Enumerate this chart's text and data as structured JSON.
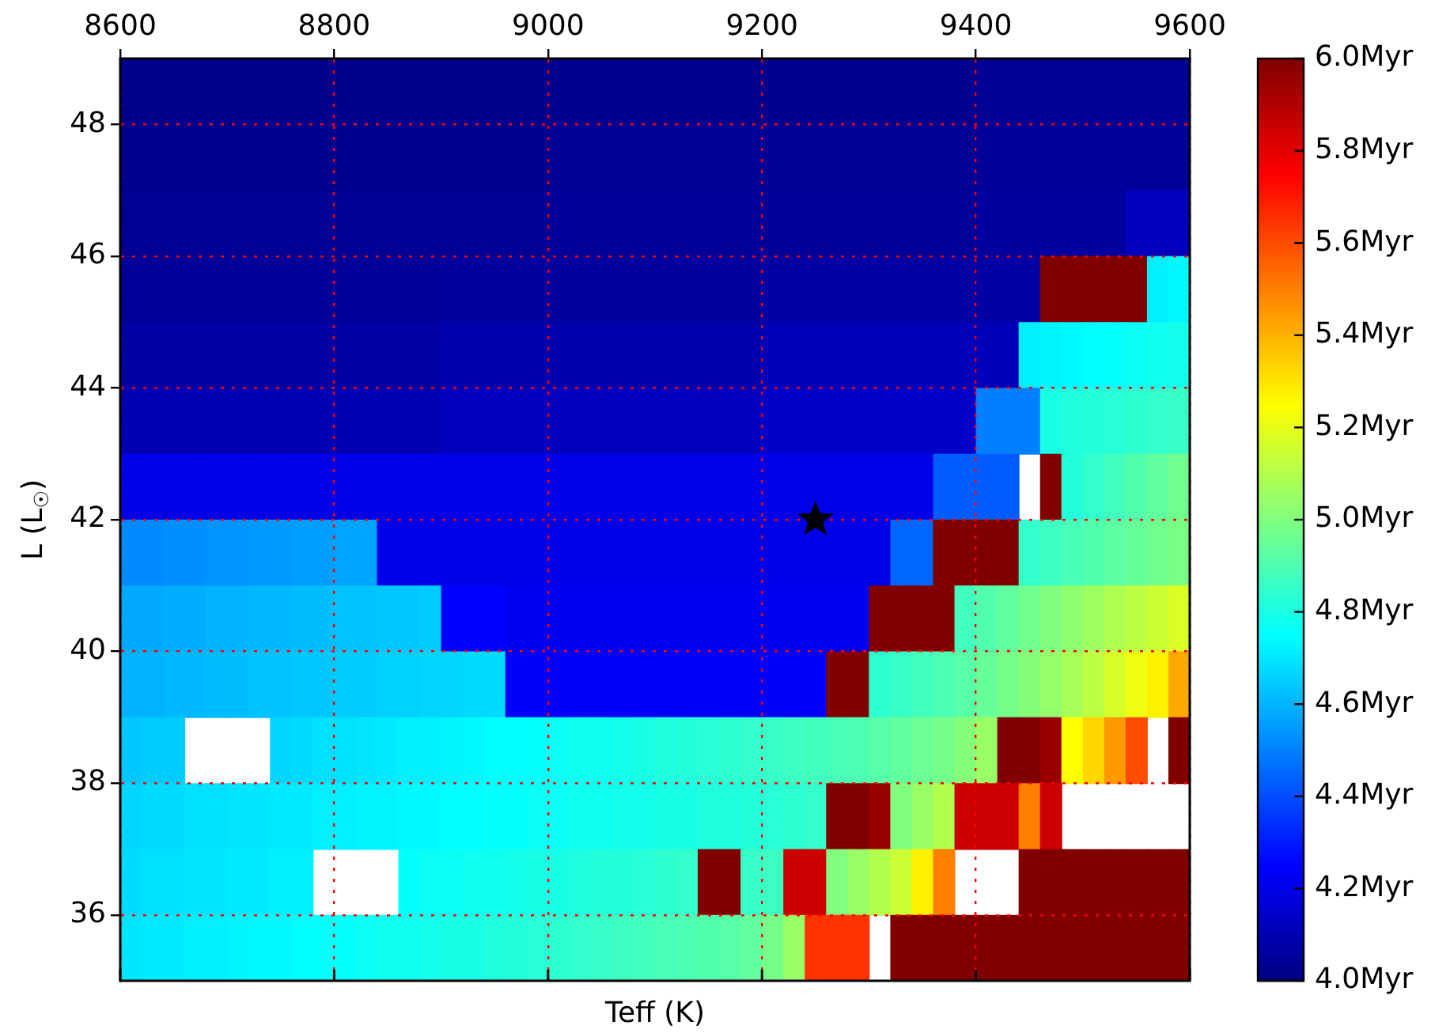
{
  "chart_data": {
    "type": "heatmap",
    "xlabel": "Teff (K)",
    "ylabel": "L (L$_{☉}$)",
    "x": [
      8610,
      8630,
      8650,
      8670,
      8690,
      8710,
      8730,
      8750,
      8770,
      8790,
      8810,
      8830,
      8850,
      8870,
      8890,
      8910,
      8930,
      8950,
      8970,
      8990,
      9010,
      9030,
      9050,
      9070,
      9090,
      9110,
      9130,
      9150,
      9170,
      9190,
      9210,
      9230,
      9250,
      9270,
      9290,
      9310,
      9330,
      9350,
      9370,
      9390,
      9410,
      9430,
      9450,
      9470,
      9490,
      9510,
      9530,
      9550,
      9570,
      9590
    ],
    "y": [
      48.5,
      47.5,
      46.5,
      45.5,
      44.5,
      43.5,
      42.5,
      41.5,
      40.5,
      39.5,
      38.5,
      37.5,
      36.5,
      35.5
    ],
    "xlim": [
      8600,
      9600
    ],
    "xticks": [
      8600,
      8800,
      9000,
      9200,
      9400,
      9600
    ],
    "ylim": [
      35,
      49
    ],
    "yticks": [
      36,
      38,
      40,
      42,
      44,
      46,
      48
    ],
    "clim": [
      4.0,
      6.0
    ],
    "cticks": [
      {
        "value": 4.0,
        "label": "4.0Myr"
      },
      {
        "value": 4.2,
        "label": "4.2Myr"
      },
      {
        "value": 4.4,
        "label": "4.4Myr"
      },
      {
        "value": 4.6,
        "label": "4.6Myr"
      },
      {
        "value": 4.8,
        "label": "4.8Myr"
      },
      {
        "value": 5.0,
        "label": "5.0Myr"
      },
      {
        "value": 5.2,
        "label": "5.2Myr"
      },
      {
        "value": 5.4,
        "label": "5.4Myr"
      },
      {
        "value": 5.6,
        "label": "5.6Myr"
      },
      {
        "value": 5.8,
        "label": "5.8Myr"
      },
      {
        "value": 6.0,
        "label": "6.0Myr"
      }
    ],
    "grid": true,
    "marker": "star",
    "cells": [
      [
        4.02,
        4.02,
        4.02,
        4.02,
        4.02,
        4.02,
        4.02,
        4.02,
        4.02,
        4.02,
        4.02,
        4.02,
        4.02,
        4.02,
        4.02,
        4.02,
        4.02,
        4.02,
        4.02,
        4.02,
        4.03,
        4.03,
        4.03,
        4.03,
        4.03,
        4.03,
        4.03,
        4.03,
        4.03,
        4.03,
        4.03,
        4.03,
        4.03,
        4.03,
        4.03,
        4.03,
        4.03,
        4.03,
        4.03,
        4.03,
        4.04,
        4.04,
        4.04,
        4.04,
        4.04,
        4.04,
        4.04,
        4.04,
        4.04,
        4.04
      ],
      [
        4.03,
        4.03,
        4.03,
        4.03,
        4.03,
        4.03,
        4.03,
        4.03,
        4.03,
        4.03,
        4.03,
        4.03,
        4.03,
        4.03,
        4.03,
        4.03,
        4.03,
        4.03,
        4.03,
        4.03,
        4.04,
        4.04,
        4.04,
        4.04,
        4.04,
        4.04,
        4.04,
        4.04,
        4.04,
        4.04,
        4.04,
        4.04,
        4.04,
        4.04,
        4.04,
        4.04,
        4.04,
        4.04,
        4.04,
        4.04,
        4.05,
        4.05,
        4.05,
        4.05,
        4.05,
        4.05,
        4.05,
        4.05,
        4.05,
        4.05
      ],
      [
        4.04,
        4.04,
        4.04,
        4.04,
        4.04,
        4.04,
        4.04,
        4.04,
        4.04,
        4.04,
        4.04,
        4.04,
        4.04,
        4.04,
        4.04,
        4.04,
        4.04,
        4.04,
        4.04,
        4.04,
        4.05,
        4.05,
        4.05,
        4.05,
        4.05,
        4.05,
        4.05,
        4.05,
        4.05,
        4.05,
        4.05,
        4.05,
        4.05,
        4.05,
        4.05,
        4.05,
        4.05,
        4.05,
        4.05,
        4.05,
        4.06,
        4.06,
        4.06,
        4.06,
        4.06,
        4.06,
        4.06,
        4.12,
        4.12,
        4.12
      ],
      [
        4.05,
        4.05,
        4.05,
        4.05,
        4.05,
        4.05,
        4.05,
        4.05,
        4.05,
        4.05,
        4.05,
        4.05,
        4.05,
        4.05,
        4.05,
        4.06,
        4.06,
        4.06,
        4.06,
        4.06,
        4.06,
        4.06,
        4.06,
        4.06,
        4.06,
        4.06,
        4.06,
        4.06,
        4.06,
        4.06,
        4.07,
        4.07,
        4.07,
        4.07,
        4.07,
        4.07,
        4.07,
        4.07,
        4.07,
        4.07,
        4.07,
        4.07,
        4.07,
        6.0,
        6.0,
        6.0,
        6.0,
        6.0,
        4.72,
        4.74
      ],
      [
        4.07,
        4.07,
        4.07,
        4.07,
        4.07,
        4.07,
        4.07,
        4.07,
        4.07,
        4.07,
        4.07,
        4.07,
        4.07,
        4.07,
        4.07,
        4.09,
        4.09,
        4.09,
        4.09,
        4.09,
        4.09,
        4.09,
        4.09,
        4.09,
        4.09,
        4.09,
        4.09,
        4.09,
        4.09,
        4.09,
        4.11,
        4.11,
        4.11,
        4.11,
        4.11,
        4.11,
        4.11,
        4.11,
        4.11,
        4.11,
        4.11,
        4.11,
        4.72,
        4.73,
        4.74,
        4.75,
        4.76,
        4.77,
        4.78,
        4.79
      ],
      [
        4.1,
        4.1,
        4.1,
        4.1,
        4.1,
        4.1,
        4.1,
        4.1,
        4.1,
        4.1,
        4.1,
        4.1,
        4.1,
        4.1,
        4.1,
        4.12,
        4.12,
        4.12,
        4.12,
        4.12,
        4.12,
        4.12,
        4.12,
        4.12,
        4.12,
        4.12,
        4.12,
        4.12,
        4.12,
        4.12,
        4.14,
        4.14,
        4.14,
        4.14,
        4.14,
        4.14,
        4.14,
        4.14,
        4.14,
        4.14,
        4.5,
        4.5,
        4.5,
        4.8,
        4.81,
        4.82,
        4.83,
        4.84,
        4.85,
        4.86
      ],
      [
        4.2,
        4.2,
        4.2,
        4.2,
        4.2,
        4.2,
        4.2,
        4.2,
        4.2,
        4.2,
        4.2,
        4.2,
        4.2,
        4.2,
        4.2,
        4.2,
        4.2,
        4.2,
        4.2,
        4.2,
        4.2,
        4.2,
        4.2,
        4.2,
        4.2,
        4.2,
        4.2,
        4.2,
        4.2,
        4.2,
        4.2,
        4.2,
        4.2,
        4.2,
        4.2,
        4.2,
        4.2,
        4.2,
        4.43,
        4.43,
        4.43,
        4.43,
        null,
        6.0,
        4.82,
        4.85,
        4.88,
        4.91,
        4.94,
        4.97
      ],
      [
        4.52,
        4.52,
        4.53,
        4.53,
        4.54,
        4.54,
        4.55,
        4.55,
        4.56,
        4.56,
        4.57,
        4.57,
        4.2,
        4.2,
        4.2,
        4.2,
        4.2,
        4.2,
        4.2,
        4.2,
        4.2,
        4.2,
        4.2,
        4.2,
        4.2,
        4.2,
        4.2,
        4.2,
        4.2,
        4.2,
        4.2,
        4.2,
        4.2,
        4.2,
        4.2,
        4.2,
        4.45,
        4.45,
        6.0,
        6.0,
        6.0,
        6.0,
        4.85,
        4.87,
        4.89,
        4.91,
        4.93,
        4.95,
        4.97,
        4.99
      ],
      [
        4.58,
        4.58,
        4.59,
        4.59,
        4.6,
        4.6,
        4.61,
        4.61,
        4.62,
        4.62,
        4.63,
        4.63,
        4.64,
        4.64,
        4.65,
        4.25,
        4.25,
        4.25,
        4.22,
        4.22,
        4.22,
        4.22,
        4.22,
        4.22,
        4.22,
        4.22,
        4.22,
        4.22,
        4.22,
        4.22,
        4.22,
        4.22,
        4.22,
        4.22,
        4.22,
        6.0,
        6.0,
        6.0,
        6.0,
        4.88,
        4.91,
        4.94,
        4.97,
        5.0,
        5.03,
        5.06,
        5.09,
        5.12,
        5.15,
        5.18
      ],
      [
        4.6,
        4.6,
        4.61,
        4.61,
        4.62,
        4.62,
        4.63,
        4.63,
        4.64,
        4.64,
        4.65,
        4.65,
        4.66,
        4.66,
        4.67,
        4.67,
        4.68,
        4.68,
        4.24,
        4.24,
        4.24,
        4.24,
        4.24,
        4.24,
        4.24,
        4.24,
        4.24,
        4.24,
        4.24,
        4.24,
        4.24,
        4.24,
        4.24,
        6.0,
        6.0,
        4.84,
        4.86,
        4.88,
        4.9,
        4.92,
        4.95,
        4.98,
        5.01,
        5.04,
        5.08,
        5.12,
        5.17,
        5.22,
        5.28,
        5.42
      ],
      [
        4.64,
        4.65,
        4.65,
        null,
        null,
        null,
        null,
        4.67,
        4.68,
        4.69,
        4.69,
        4.7,
        4.71,
        4.72,
        4.72,
        4.73,
        4.74,
        4.75,
        4.75,
        4.76,
        4.77,
        4.78,
        4.78,
        4.79,
        4.8,
        4.81,
        4.82,
        4.83,
        4.84,
        4.85,
        4.86,
        4.87,
        4.88,
        4.89,
        4.9,
        4.92,
        4.94,
        4.96,
        4.98,
        5.01,
        5.05,
        6.0,
        6.0,
        5.95,
        5.25,
        5.33,
        5.45,
        5.6,
        null,
        6.0
      ],
      [
        4.67,
        4.68,
        4.68,
        4.69,
        4.69,
        4.7,
        4.7,
        4.71,
        4.71,
        4.72,
        4.72,
        4.73,
        4.73,
        4.74,
        4.74,
        4.75,
        4.75,
        4.76,
        4.76,
        4.77,
        4.77,
        4.78,
        4.78,
        4.79,
        4.79,
        4.8,
        4.8,
        4.81,
        4.81,
        4.82,
        4.83,
        4.84,
        4.85,
        6.0,
        6.0,
        5.95,
        5.0,
        5.05,
        5.1,
        5.85,
        5.85,
        5.85,
        5.5,
        5.85,
        null,
        null,
        null,
        null,
        null,
        null
      ],
      [
        4.68,
        4.69,
        4.69,
        4.7,
        4.7,
        4.71,
        4.71,
        4.72,
        4.72,
        null,
        null,
        null,
        null,
        4.76,
        4.77,
        4.77,
        4.78,
        4.78,
        4.79,
        4.8,
        4.8,
        4.81,
        4.82,
        4.82,
        4.83,
        4.84,
        4.85,
        6.0,
        6.0,
        4.86,
        4.87,
        5.85,
        5.85,
        5.0,
        5.05,
        5.1,
        5.15,
        5.28,
        5.5,
        null,
        null,
        null,
        6.0,
        6.0,
        6.0,
        6.0,
        6.0,
        6.0,
        6.0,
        6.0
      ],
      [
        4.7,
        4.71,
        4.71,
        4.72,
        4.72,
        4.73,
        4.74,
        4.74,
        4.75,
        4.76,
        4.76,
        4.77,
        4.78,
        4.78,
        4.79,
        4.8,
        4.8,
        4.81,
        4.82,
        4.83,
        4.84,
        4.85,
        4.86,
        4.87,
        4.88,
        4.89,
        4.9,
        4.91,
        4.92,
        4.94,
        4.98,
        5.05,
        5.65,
        5.65,
        5.65,
        null,
        6.0,
        6.0,
        6.0,
        6.0,
        6.0,
        6.0,
        6.0,
        6.0,
        6.0,
        6.0,
        6.0,
        6.0,
        6.0,
        6.0
      ]
    ],
    "series": [
      {
        "type": "scatter",
        "x": [
          9250
        ],
        "values": [
          42
        ],
        "color": "#000000"
      }
    ]
  }
}
